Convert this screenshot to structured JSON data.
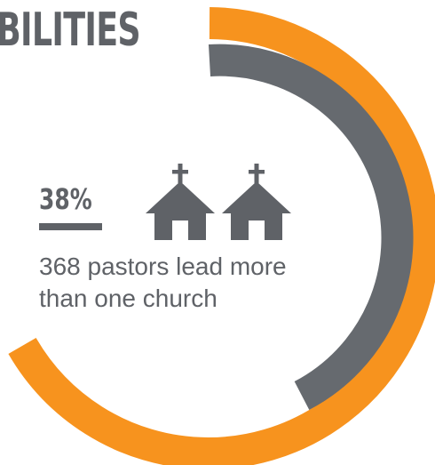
{
  "heading": {
    "text": "BILITIES"
  },
  "stat": {
    "value": "38%",
    "description": "368 pastors lead more than one church",
    "fraction": 0.38
  },
  "icons": {
    "church_icon": "church-icon"
  },
  "colors": {
    "accent_orange": "#f7931e",
    "ring_gray": "#666a6f",
    "text_gray": "#5f6267"
  }
}
